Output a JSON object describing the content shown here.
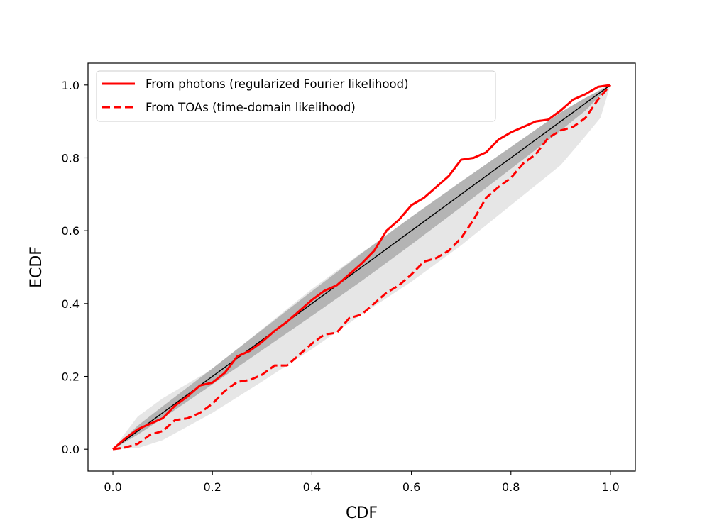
{
  "chart_data": {
    "type": "line",
    "xlabel": "CDF",
    "ylabel": "ECDF",
    "xlim": [
      -0.05,
      1.05
    ],
    "ylim": [
      -0.06,
      1.06
    ],
    "xticks": [
      0.0,
      0.2,
      0.4,
      0.6,
      0.8,
      1.0
    ],
    "xtick_labels": [
      "0.0",
      "0.2",
      "0.4",
      "0.6",
      "0.8",
      "1.0"
    ],
    "yticks": [
      0.0,
      0.2,
      0.4,
      0.6,
      0.8,
      1.0
    ],
    "ytick_labels": [
      "0.0",
      "0.2",
      "0.4",
      "0.6",
      "0.8",
      "1.0"
    ],
    "grid": false,
    "legend_position": "top-left",
    "reference_line": {
      "x": [
        0,
        1
      ],
      "y": [
        0,
        1
      ],
      "color": "#000000"
    },
    "bands": [
      {
        "name": "outer",
        "color": "#e6e6e6",
        "x": [
          0,
          0.05,
          0.1,
          0.2,
          0.3,
          0.4,
          0.5,
          0.6,
          0.7,
          0.8,
          0.9,
          0.95,
          0.98,
          1.0
        ],
        "lower": [
          0,
          0.003,
          0.025,
          0.1,
          0.186,
          0.275,
          0.37,
          0.46,
          0.56,
          0.67,
          0.78,
          0.86,
          0.91,
          1.0
        ],
        "upper": [
          0,
          0.09,
          0.14,
          0.22,
          0.33,
          0.44,
          0.54,
          0.63,
          0.73,
          0.82,
          0.9,
          0.96,
          0.99,
          1.0
        ]
      },
      {
        "name": "inner",
        "color": "#b4b4b4",
        "x": [
          0,
          0.05,
          0.1,
          0.2,
          0.3,
          0.4,
          0.5,
          0.6,
          0.7,
          0.8,
          0.9,
          0.95,
          1.0
        ],
        "lower": [
          0,
          0.04,
          0.085,
          0.178,
          0.272,
          0.366,
          0.462,
          0.562,
          0.665,
          0.77,
          0.875,
          0.93,
          1.0
        ],
        "upper": [
          0,
          0.065,
          0.118,
          0.222,
          0.328,
          0.434,
          0.538,
          0.638,
          0.735,
          0.83,
          0.925,
          0.965,
          1.0
        ]
      }
    ],
    "series": [
      {
        "name": "From photons (regularized Fourier likelihood)",
        "style": "solid",
        "color": "#ff0000",
        "x": [
          0,
          0.025,
          0.05,
          0.075,
          0.1,
          0.125,
          0.15,
          0.175,
          0.2,
          0.225,
          0.25,
          0.275,
          0.3,
          0.325,
          0.35,
          0.375,
          0.4,
          0.425,
          0.45,
          0.475,
          0.5,
          0.525,
          0.55,
          0.575,
          0.6,
          0.625,
          0.65,
          0.675,
          0.7,
          0.725,
          0.75,
          0.775,
          0.8,
          0.825,
          0.85,
          0.875,
          0.9,
          0.925,
          0.95,
          0.975,
          1.0
        ],
        "y": [
          0,
          0.03,
          0.055,
          0.07,
          0.085,
          0.12,
          0.145,
          0.175,
          0.183,
          0.21,
          0.255,
          0.27,
          0.295,
          0.325,
          0.35,
          0.38,
          0.41,
          0.435,
          0.45,
          0.48,
          0.51,
          0.545,
          0.6,
          0.63,
          0.67,
          0.69,
          0.72,
          0.75,
          0.795,
          0.8,
          0.815,
          0.85,
          0.87,
          0.885,
          0.9,
          0.905,
          0.93,
          0.96,
          0.975,
          0.995,
          1.0
        ]
      },
      {
        "name": "From TOAs (time-domain likelihood)",
        "style": "dashed",
        "color": "#ff0000",
        "x": [
          0,
          0.025,
          0.05,
          0.075,
          0.1,
          0.125,
          0.15,
          0.175,
          0.2,
          0.225,
          0.25,
          0.275,
          0.3,
          0.325,
          0.35,
          0.375,
          0.4,
          0.425,
          0.45,
          0.475,
          0.5,
          0.525,
          0.55,
          0.575,
          0.6,
          0.625,
          0.65,
          0.675,
          0.7,
          0.725,
          0.75,
          0.775,
          0.8,
          0.825,
          0.85,
          0.875,
          0.9,
          0.925,
          0.95,
          0.975,
          1.0
        ],
        "y": [
          0,
          0.005,
          0.015,
          0.04,
          0.05,
          0.08,
          0.085,
          0.1,
          0.125,
          0.16,
          0.185,
          0.19,
          0.205,
          0.23,
          0.23,
          0.26,
          0.29,
          0.315,
          0.32,
          0.36,
          0.37,
          0.4,
          0.43,
          0.45,
          0.48,
          0.515,
          0.525,
          0.545,
          0.58,
          0.63,
          0.69,
          0.72,
          0.745,
          0.785,
          0.81,
          0.855,
          0.875,
          0.885,
          0.91,
          0.96,
          1.0
        ]
      }
    ]
  }
}
